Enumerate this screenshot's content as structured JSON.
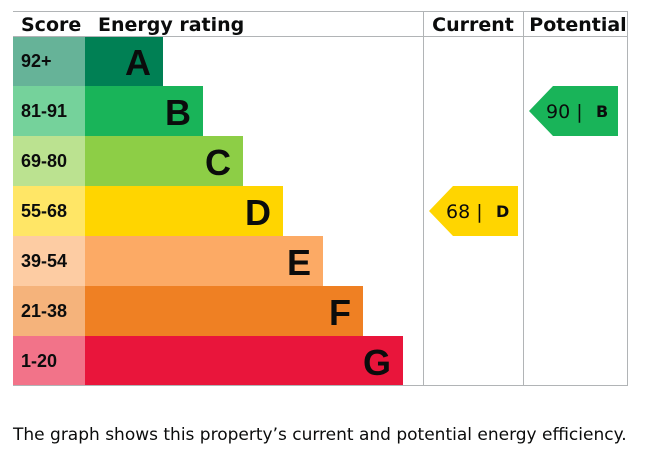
{
  "chart_data": {
    "type": "bar",
    "headers": {
      "score": "Score",
      "rating": "Energy rating",
      "current": "Current",
      "potential": "Potential"
    },
    "bands": [
      {
        "letter": "A",
        "range": "92+",
        "color": "#008054",
        "score_color": "#66b398"
      },
      {
        "letter": "B",
        "range": "81-91",
        "color": "#19b459",
        "score_color": "#75d29b"
      },
      {
        "letter": "C",
        "range": "69-80",
        "color": "#8dce46",
        "score_color": "#bbe290"
      },
      {
        "letter": "D",
        "range": "55-68",
        "color": "#ffd500",
        "score_color": "#ffe666"
      },
      {
        "letter": "E",
        "range": "39-54",
        "color": "#fcaa65",
        "score_color": "#fdcca3"
      },
      {
        "letter": "F",
        "range": "21-38",
        "color": "#ef8023",
        "score_color": "#f5b37b"
      },
      {
        "letter": "G",
        "range": "1-20",
        "color": "#e9153b",
        "score_color": "#f27389"
      }
    ],
    "current": {
      "value": 68,
      "value_text": "68 |",
      "letter": "D",
      "color": "#ffd500"
    },
    "potential": {
      "value": 90,
      "value_text": "90 |",
      "letter": "B",
      "color": "#19b459"
    }
  },
  "caption": "The graph shows this property’s current and potential energy efficiency."
}
